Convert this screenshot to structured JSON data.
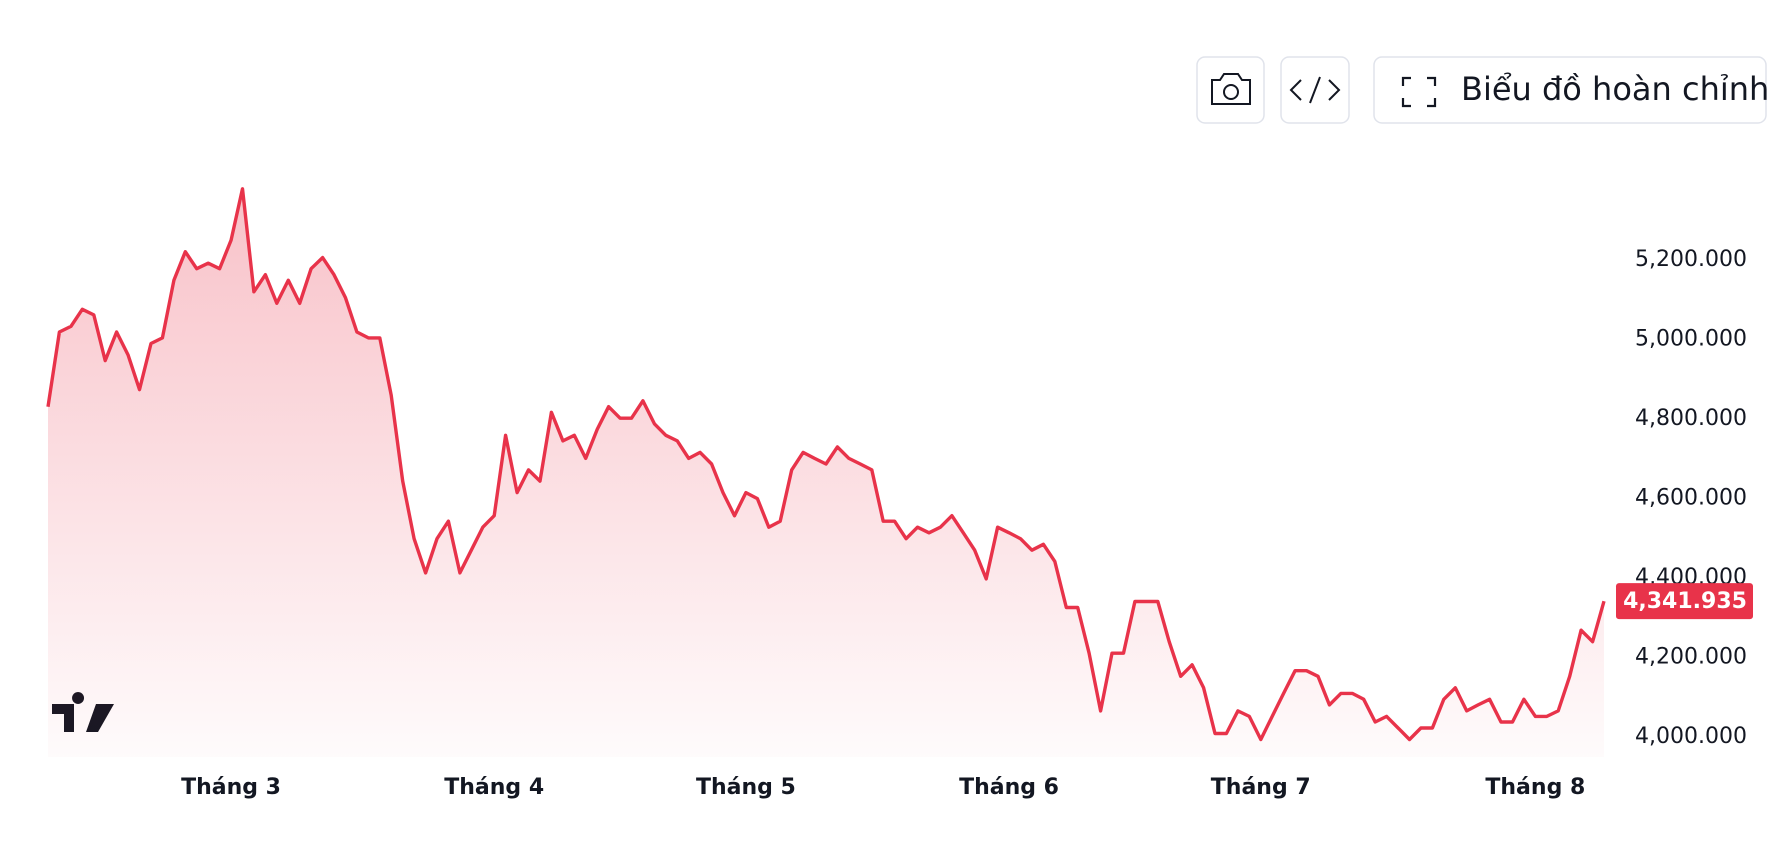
{
  "toolbar": {
    "fullscreen_button": "Biểu đồ hoàn chỉnh"
  },
  "chart_data": {
    "type": "line",
    "color": "#e8334a",
    "categories": [
      null,
      null,
      null,
      null,
      null,
      null,
      null,
      null,
      null,
      null,
      null,
      null,
      null,
      null,
      null,
      null,
      "Tháng 3",
      null,
      null,
      null,
      null,
      null,
      null,
      null,
      null,
      null,
      null,
      null,
      null,
      null,
      null,
      null,
      null,
      null,
      null,
      null,
      null,
      null,
      null,
      "Tháng 4",
      null,
      null,
      null,
      null,
      null,
      null,
      null,
      null,
      null,
      null,
      null,
      null,
      null,
      null,
      null,
      null,
      null,
      null,
      null,
      null,
      null,
      "Tháng 5",
      null,
      null,
      null,
      null,
      null,
      null,
      null,
      null,
      null,
      null,
      null,
      null,
      null,
      null,
      null,
      null,
      null,
      null,
      null,
      null,
      null,
      null,
      "Tháng 6",
      null,
      null,
      null,
      null,
      null,
      null,
      null,
      null,
      null,
      null,
      null,
      null,
      null,
      null,
      null,
      null,
      null,
      null,
      null,
      null,
      null,
      "Tháng 7",
      null,
      null,
      null,
      null,
      null,
      null,
      null,
      null,
      null,
      null,
      null,
      null,
      null,
      null,
      null,
      null,
      null,
      null,
      null,
      null,
      null,
      null,
      null,
      "Tháng 8",
      null,
      null,
      null,
      null,
      null,
      null
    ],
    "values": [
      4831,
      5019,
      5033,
      5076,
      5062,
      4947,
      5019,
      4961,
      4874,
      4990,
      5004,
      5149,
      5221,
      5178,
      5192,
      5178,
      5250,
      5379,
      5120,
      5163,
      5091,
      5149,
      5091,
      5178,
      5206,
      5163,
      5105,
      5019,
      5004,
      5004,
      4860,
      4644,
      4499,
      4413,
      4499,
      4543,
      4413,
      4470,
      4528,
      4557,
      4759,
      4615,
      4672,
      4644,
      4817,
      4745,
      4759,
      4701,
      4774,
      4831,
      4802,
      4802,
      4846,
      4788,
      4759,
      4745,
      4701,
      4716,
      4687,
      4615,
      4557,
      4615,
      4600,
      4528,
      4543,
      4672,
      4716,
      4701,
      4687,
      4730,
      4701,
      4687,
      4672,
      4543,
      4543,
      4499,
      4528,
      4514,
      4528,
      4557,
      4514,
      4470,
      4398,
      4528,
      4514,
      4499,
      4470,
      4485,
      4442,
      4326,
      4326,
      4211,
      4066,
      4211,
      4211,
      4341,
      4341,
      4341,
      4240,
      4153,
      4182,
      4124,
      4009,
      4009,
      4066,
      4052,
      3994,
      4052,
      4110,
      4167,
      4167,
      4153,
      4081,
      4110,
      4110,
      4095,
      4038,
      4052,
      4023,
      3994,
      4023,
      4023,
      4095,
      4124,
      4066,
      4081,
      4095,
      4038,
      4038,
      4095,
      4052,
      4052,
      4066,
      4153,
      4269,
      4240,
      4341.935
    ],
    "value_labels": [
      null,
      null,
      null,
      null,
      null,
      null,
      null,
      null,
      null,
      null,
      null,
      null,
      null,
      null,
      null,
      null,
      null,
      null,
      null,
      null,
      null,
      null,
      null,
      null,
      null,
      null,
      null,
      null,
      null,
      null,
      null,
      null,
      null,
      null,
      null,
      null,
      null,
      null,
      null,
      null,
      null,
      null,
      null,
      null,
      null,
      null,
      null,
      null,
      null,
      null,
      null,
      null,
      null,
      null,
      null,
      null,
      null,
      null,
      null,
      null,
      null,
      null,
      null,
      null,
      null,
      null,
      null,
      null,
      null,
      null,
      null,
      null,
      null,
      null,
      null,
      null,
      null,
      null,
      null,
      null,
      null,
      null,
      null,
      null,
      null,
      null,
      null,
      null,
      null,
      null,
      null,
      null,
      null,
      null,
      null,
      null,
      null,
      null,
      null,
      null,
      null,
      null,
      null,
      null,
      null,
      null,
      null,
      null,
      null,
      null,
      null,
      null,
      null,
      null,
      null,
      null,
      null,
      null,
      null,
      null,
      null,
      null,
      null,
      null,
      null,
      null,
      null,
      null,
      null,
      null,
      null,
      null,
      null,
      null,
      null,
      null,
      "4,341.935"
    ],
    "ylim": [
      3950,
      5450
    ],
    "yticks": [
      {
        "value": 4000,
        "label": "4,000.000"
      },
      {
        "value": 4200,
        "label": "4,200.000"
      },
      {
        "value": 4400,
        "label": "4,400.000"
      },
      {
        "value": 4600,
        "label": "4,600.000"
      },
      {
        "value": 4800,
        "label": "4,800.000"
      },
      {
        "value": 5000,
        "label": "5,000.000"
      },
      {
        "value": 5200,
        "label": "5,200.000"
      }
    ]
  }
}
